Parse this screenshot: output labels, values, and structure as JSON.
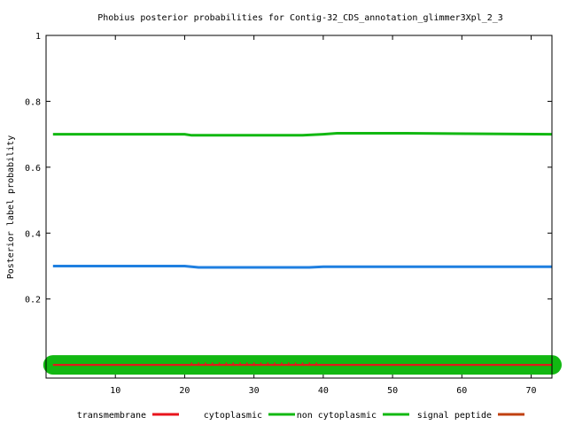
{
  "chart_data": {
    "type": "line",
    "title": "Phobius posterior probabilities for Contig-32_CDS_annotation_glimmer3Xpl_2_3",
    "xlabel": "",
    "ylabel": "Posterior label probability",
    "xlim": [
      0,
      73
    ],
    "ylim": [
      -0.04,
      1
    ],
    "x_ticks": [
      10,
      20,
      30,
      40,
      50,
      60,
      70
    ],
    "y_ticks": [
      0.2,
      0.4,
      0.6,
      0.8,
      1
    ],
    "y_tick_labels": [
      "0.2",
      "0.4",
      "0.6",
      "0.8",
      "1"
    ],
    "grid": false,
    "legend_position": "bottom",
    "series": [
      {
        "name": "transmembrane",
        "color": "#e8141c",
        "x": [
          1,
          73
        ],
        "y": [
          0,
          0
        ]
      },
      {
        "name": "cytoplasmic",
        "color": "#12b812",
        "x": [
          1,
          73
        ],
        "y": [
          0,
          0
        ]
      },
      {
        "name": "non cytoplasmic",
        "color": "#12b812",
        "x": [
          1,
          20,
          21,
          37,
          40,
          42,
          52,
          73
        ],
        "y": [
          0.7,
          0.7,
          0.697,
          0.697,
          0.7,
          0.703,
          0.703,
          0.7
        ]
      },
      {
        "name": "signal peptide",
        "color": "#1f7fe0",
        "x": [
          1,
          20,
          22,
          38,
          40,
          73
        ],
        "y": [
          0.3,
          0.3,
          0.296,
          0.296,
          0.298,
          0.298
        ]
      },
      {
        "name": "signal peptide",
        "color": "#c04010",
        "x": [
          1,
          73
        ],
        "y": [
          0,
          0
        ]
      }
    ]
  }
}
